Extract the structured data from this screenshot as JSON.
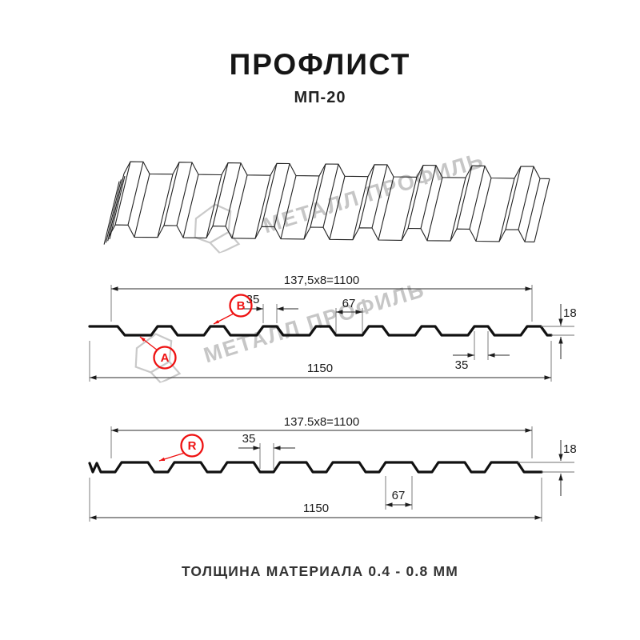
{
  "header": {
    "title": "ПРОФЛИСТ",
    "subtitle": "МП-20"
  },
  "watermark": {
    "text": "МЕТАЛЛ ПРОФИЛЬ",
    "color": "#c6c6c6"
  },
  "profile_top": {
    "pitch_total": "137,5x8=1100",
    "overall_width": "1150",
    "rib_top_width": "35",
    "rib_spacing": "67",
    "rib_bottom_width": "35",
    "profile_height": "18",
    "labels": [
      "A",
      "B"
    ]
  },
  "profile_bottom": {
    "pitch_total": "137.5x8=1100",
    "overall_width": "1150",
    "groove_width": "35",
    "rib_width": "67",
    "profile_height": "18",
    "labels": [
      "R"
    ]
  },
  "footer": {
    "note": "ТОЛЩИНА МАТЕРИАЛА 0.4 - 0.8 ММ"
  },
  "colors": {
    "accent": "#ee1111",
    "line": "#1c1c1c",
    "watermark": "#c6c6c6"
  }
}
